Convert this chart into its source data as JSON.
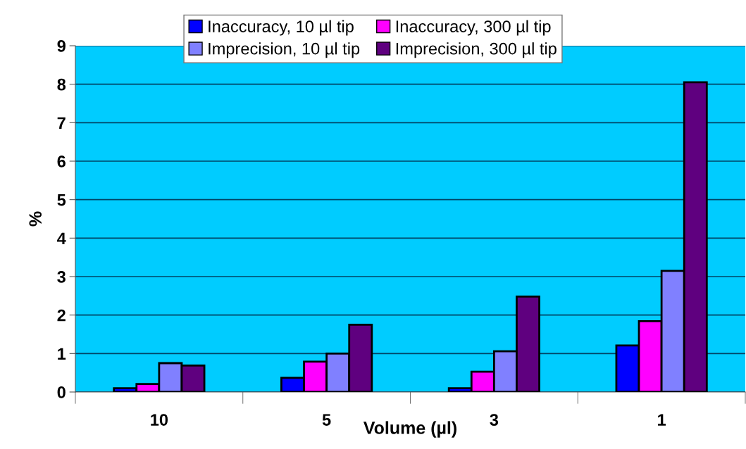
{
  "chart_data": {
    "type": "bar",
    "xlabel": "Volume (µl)",
    "ylabel": "%",
    "categories": [
      "10",
      "5",
      "3",
      "1"
    ],
    "series": [
      {
        "name": "Inaccuracy, 10 µl tip",
        "color": "#0000ff",
        "values": [
          0.1,
          0.37,
          0.1,
          1.21
        ]
      },
      {
        "name": "Inaccuracy, 300 µl tip",
        "color": "#ff00ff",
        "values": [
          0.21,
          0.79,
          0.53,
          1.84
        ]
      },
      {
        "name": "Imprecision, 10 µl tip",
        "color": "#8080ff",
        "values": [
          0.75,
          1.0,
          1.06,
          3.15
        ]
      },
      {
        "name": "Imprecision, 300 µl tip",
        "color": "#5f007f",
        "values": [
          0.69,
          1.75,
          2.48,
          8.05
        ]
      }
    ],
    "ylim": [
      0,
      9
    ],
    "yticks": [
      0,
      1,
      2,
      3,
      4,
      5,
      6,
      7,
      8,
      9
    ],
    "grid": "y",
    "legend": "top"
  }
}
